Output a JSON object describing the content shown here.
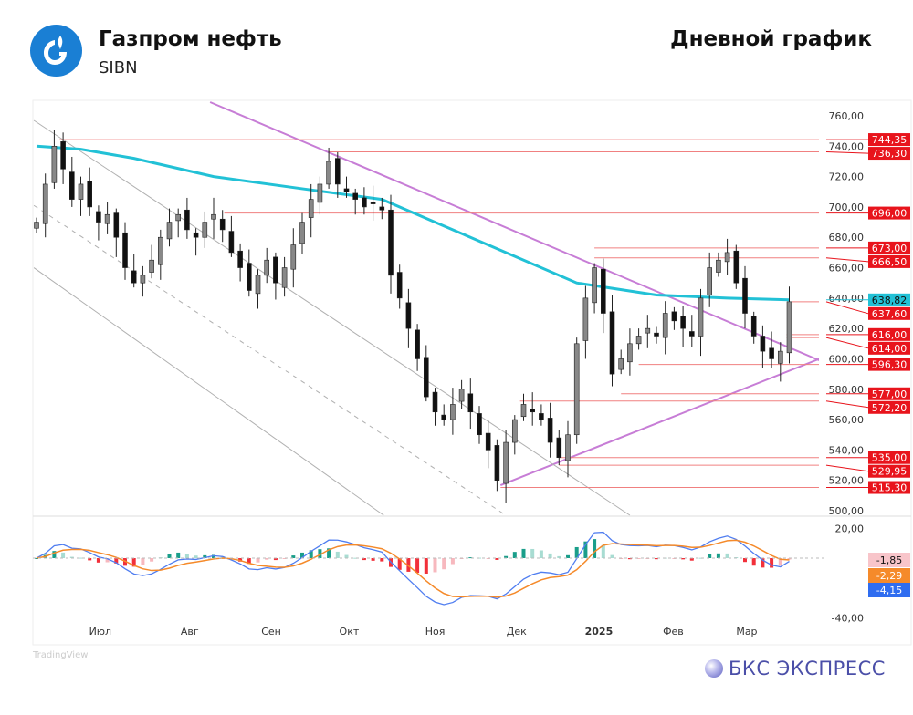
{
  "header": {
    "company": "Газпром нефть",
    "ticker": "SIBN",
    "chart_type_label": "Дневной график"
  },
  "footer": {
    "tradingview": "TradingView",
    "brand": "БКС ЭКСПРЕСС"
  },
  "colors": {
    "ma": "#22c1d6",
    "level": "#f08080",
    "level_label": "#e8141c",
    "trend": "#c77dd6",
    "channel": "#b0b0b0",
    "up": "#888888",
    "down": "#111111",
    "macd": "#4f7df0",
    "signal": "#f58a2a",
    "hist_pos_strong": "#1a9e8a",
    "hist_pos_weak": "#a8dcd2",
    "hist_neg_strong": "#f2303a",
    "hist_neg_weak": "#f7b8be"
  },
  "chart_data": [
    {
      "type": "candlestick",
      "title": "",
      "ylim": [
        495,
        770
      ],
      "y_ticks": [
        "760,00",
        "740,00",
        "720,00",
        "700,00",
        "680,00",
        "660,00",
        "640,00",
        "620,00",
        "600,00",
        "580,00",
        "560,00",
        "540,00",
        "520,00",
        "500,00"
      ],
      "y_tick_values": [
        760,
        740,
        720,
        700,
        680,
        660,
        640,
        620,
        600,
        580,
        560,
        540,
        520,
        500
      ],
      "x_ticks": [
        {
          "label": "Июл",
          "index": 7.2
        },
        {
          "label": "Авг",
          "index": 17.3
        },
        {
          "label": "Сен",
          "index": 26.5
        },
        {
          "label": "Окт",
          "index": 35.3
        },
        {
          "label": "Ноя",
          "index": 45
        },
        {
          "label": "Дек",
          "index": 54.2
        },
        {
          "label": "2025",
          "index": 63.5
        },
        {
          "label": "Фев",
          "index": 71.9
        },
        {
          "label": "Мар",
          "index": 80.2
        }
      ],
      "closes": [
        690,
        715,
        740,
        725,
        705,
        715,
        700,
        690,
        695,
        680,
        660,
        650,
        655,
        665,
        680,
        690,
        695,
        685,
        680,
        690,
        695,
        685,
        670,
        660,
        645,
        655,
        665,
        650,
        660,
        675,
        690,
        705,
        715,
        730,
        715,
        710,
        705,
        700,
        702,
        698,
        655,
        640,
        620,
        600,
        575,
        565,
        560,
        570,
        580,
        565,
        550,
        540,
        520,
        545,
        560,
        570,
        565,
        560,
        545,
        535,
        550,
        610,
        640,
        660,
        630,
        590,
        600,
        610,
        615,
        620,
        615,
        630,
        625,
        620,
        615,
        640,
        660,
        665,
        670,
        650,
        630,
        615,
        605,
        600,
        605,
        637.6
      ],
      "ma_line": {
        "points": [
          [
            0,
            740
          ],
          [
            5,
            738
          ],
          [
            11,
            732
          ],
          [
            20,
            720
          ],
          [
            30,
            712
          ],
          [
            39,
            705
          ],
          [
            45,
            690
          ],
          [
            53,
            670
          ],
          [
            61,
            650
          ],
          [
            70,
            642
          ],
          [
            78,
            640
          ],
          [
            85,
            638.82
          ]
        ],
        "label": "638,82"
      },
      "levels": [
        {
          "value": 744.35,
          "label": "744,35",
          "from": 2.6
        },
        {
          "value": 736.3,
          "label": "736,30",
          "from": 33
        },
        {
          "value": 696.0,
          "label": "696,00",
          "from": 21.2
        },
        {
          "value": 673.0,
          "label": "673,00",
          "from": 63
        },
        {
          "value": 666.5,
          "label": "666,50",
          "from": 63
        },
        {
          "value": 637.6,
          "label": "637,60",
          "from": 85.3
        },
        {
          "value": 616.0,
          "label": "616,00",
          "from": 84.7
        },
        {
          "value": 614.0,
          "label": "614,00",
          "from": 84.7
        },
        {
          "value": 596.3,
          "label": "596,30",
          "from": 68
        },
        {
          "value": 577.0,
          "label": "577,00",
          "from": 66
        },
        {
          "value": 572.2,
          "label": "572,20",
          "from": 54.6
        },
        {
          "value": 535.0,
          "label": "535,00",
          "from": 59
        },
        {
          "value": 529.95,
          "label": "529,95",
          "from": 59
        },
        {
          "value": 515.3,
          "label": "515,30",
          "from": 52.4
        }
      ],
      "trend_lines": [
        {
          "kind": "trend",
          "from": [
            19.6,
            769
          ],
          "to": [
            88.4,
            599
          ]
        },
        {
          "kind": "trend",
          "from": [
            52.4,
            516.8
          ],
          "to": [
            88.4,
            600
          ]
        },
        {
          "kind": "channel",
          "from": [
            -0.3,
            757
          ],
          "to": [
            67,
            497
          ]
        },
        {
          "kind": "channel-dashed",
          "from": [
            -0.3,
            701
          ],
          "to": [
            53,
            497
          ]
        },
        {
          "kind": "channel",
          "from": [
            -0.3,
            660
          ],
          "to": [
            39.2,
            497
          ]
        }
      ]
    },
    {
      "type": "macd",
      "ylim": [
        -42,
        22
      ],
      "y_ticks": [
        "20,00",
        "-40,00"
      ],
      "y_tick_values": [
        20,
        -40
      ],
      "last_values": {
        "histogram": "-1,85",
        "signal": "-2,29",
        "macd": "-4,15"
      }
    }
  ]
}
